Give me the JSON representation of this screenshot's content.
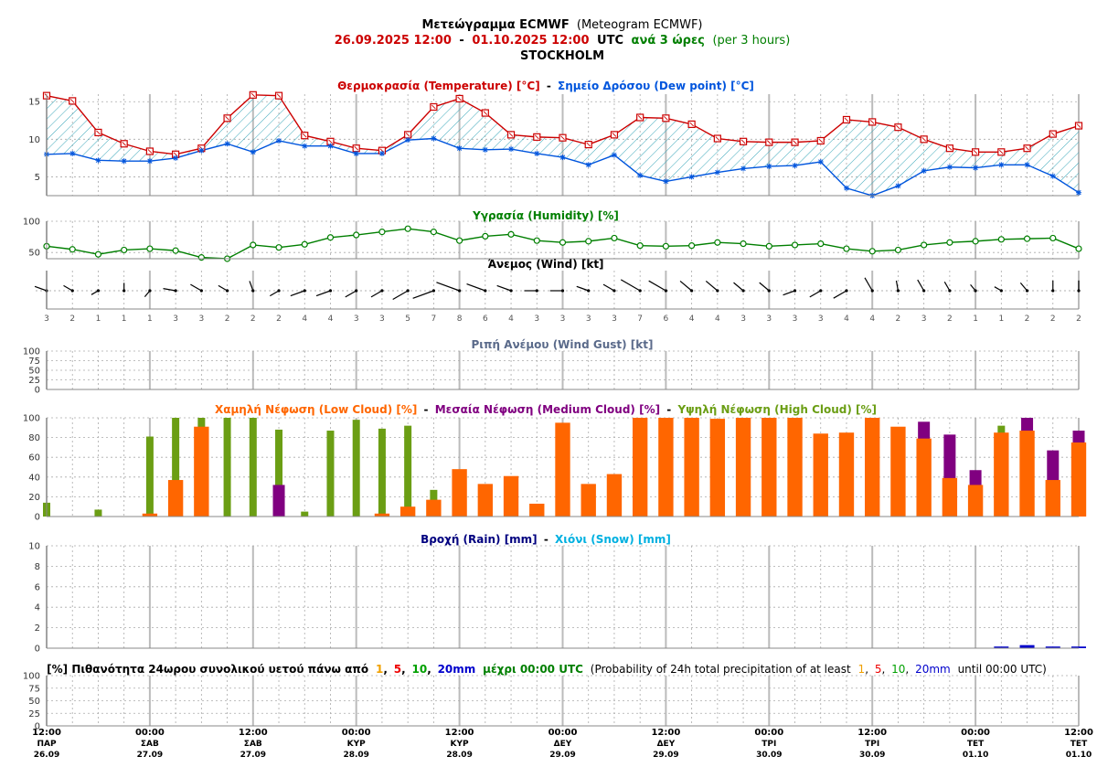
{
  "header": {
    "line1_bold": "Μετεώγραμμα ECMWF",
    "line1_normal": "(Meteogram ECMWF)",
    "date_from": "26.09.2025 12:00",
    "date_sep": "-",
    "date_to": "01.10.2025 12:00",
    "utc": "UTC",
    "step_gr": "ανά 3 ώρες",
    "step_en": "(per 3 hours)",
    "location": "STOCKHOLM"
  },
  "titles": {
    "temp": "Θερμοκρασία (Temperature) [°C]",
    "sep": "-",
    "dew": "Σημείο Δρόσου (Dew point) [°C]",
    "humidity": "Υγρασία (Humidity) [%]",
    "wind": "Άνεμος (Wind) [kt]",
    "gust": "Ριπή Ανέμου (Wind Gust) [kt]",
    "low_cloud": "Χαμηλή Νέφωση (Low Cloud) [%]",
    "medium_cloud": "Μεσαία Νέφωση (Medium Cloud) [%]",
    "high_cloud": "Υψηλή Νέφωση (High Cloud) [%]",
    "rain": "Βροχή (Rain) [mm]",
    "snow": "Χιόνι (Snow) [mm]",
    "prob_gr_a": "[%] Πιθανότητα 24ωρου συνολικού υετού πάνω από",
    "prob_gr_b": "μέχρι 00:00 UTC",
    "prob_en_a": "(Probability of 24h total precipitation of at least",
    "prob_en_b": "until 00:00 UTC)",
    "thresholds": [
      "1",
      "5",
      "10",
      "20mm"
    ]
  },
  "colors": {
    "red": "#cc0000",
    "green": "#007f00",
    "temp": "#cc0000",
    "dew": "#0055dd",
    "hatch": "#3aa7b9",
    "humidity": "#007f00",
    "gust": "#5a6a8a",
    "low": "#ff6600",
    "medium": "#800080",
    "high": "#6b9e14",
    "rain": "#00007f",
    "snow": "#00b0e0",
    "thr1": "#f0a000",
    "thr5": "#ee0000",
    "thr10": "#00a000",
    "thr20": "#0000cc"
  },
  "x_ticks": [
    {
      "time": "12:00",
      "day": "ΠΑΡ",
      "date": "26.09"
    },
    {
      "time": "00:00",
      "day": "ΣΑΒ",
      "date": "27.09"
    },
    {
      "time": "12:00",
      "day": "ΣΑΒ",
      "date": "27.09"
    },
    {
      "time": "00:00",
      "day": "ΚΥΡ",
      "date": "28.09"
    },
    {
      "time": "12:00",
      "day": "ΚΥΡ",
      "date": "28.09"
    },
    {
      "time": "00:00",
      "day": "ΔΕΥ",
      "date": "29.09"
    },
    {
      "time": "12:00",
      "day": "ΔΕΥ",
      "date": "29.09"
    },
    {
      "time": "00:00",
      "day": "ΤΡΙ",
      "date": "30.09"
    },
    {
      "time": "12:00",
      "day": "ΤΡΙ",
      "date": "30.09"
    },
    {
      "time": "00:00",
      "day": "ΤΕΤ",
      "date": "01.10"
    },
    {
      "time": "12:00",
      "day": "ΤΕΤ",
      "date": "01.10"
    }
  ],
  "y_ticks": {
    "temp": [
      "15",
      "10",
      "5"
    ],
    "humidity": [
      "100",
      "50"
    ],
    "gust": [
      "100",
      "75",
      "50",
      "25",
      "0"
    ],
    "cloud": [
      "100",
      "80",
      "60",
      "40",
      "20",
      "0"
    ],
    "rain": [
      "10",
      "8",
      "6",
      "4",
      "2",
      "0"
    ],
    "prob": [
      "100",
      "75",
      "50",
      "25",
      "0"
    ]
  },
  "chart_data": {
    "type": "line",
    "step_hours": 3,
    "n_steps": 41,
    "temperature": [
      15.8,
      15.1,
      10.9,
      9.4,
      8.4,
      8.0,
      8.8,
      12.8,
      15.9,
      15.8,
      10.5,
      9.7,
      8.8,
      8.5,
      10.6,
      14.3,
      15.4,
      13.5,
      10.6,
      10.3,
      10.2,
      9.3,
      10.6,
      12.9,
      12.8,
      12.0,
      10.1,
      9.7,
      9.6,
      9.6,
      9.8,
      12.6,
      12.3,
      11.6,
      10.0,
      8.8,
      8.3,
      8.3,
      8.8,
      10.7,
      11.8
    ],
    "dew_point": [
      8.0,
      8.1,
      7.2,
      7.1,
      7.1,
      7.5,
      8.5,
      9.4,
      8.3,
      9.8,
      9.1,
      9.1,
      8.1,
      8.1,
      9.9,
      10.1,
      8.8,
      8.6,
      8.7,
      8.1,
      7.6,
      6.6,
      7.9,
      5.2,
      4.4,
      5.0,
      5.6,
      6.1,
      6.4,
      6.5,
      7.0,
      3.5,
      2.5,
      3.8,
      5.8,
      6.3,
      6.2,
      6.6,
      6.6,
      5.1,
      2.9
    ],
    "humidity": [
      60,
      55,
      47,
      54,
      56,
      53,
      42,
      40,
      62,
      58,
      63,
      74,
      78,
      83,
      88,
      83,
      69,
      76,
      79,
      69,
      66,
      68,
      73,
      61,
      60,
      61,
      66,
      64,
      60,
      62,
      64,
      56,
      52,
      54,
      62,
      66,
      68,
      71,
      72,
      73,
      56
    ],
    "wind_speed_kt": [
      3,
      2,
      1,
      1,
      1,
      3,
      3,
      2,
      2,
      2,
      4,
      4,
      3,
      3,
      5,
      7,
      8,
      6,
      4,
      3,
      3,
      3,
      3,
      7,
      6,
      4,
      4,
      3,
      3,
      3,
      3,
      4,
      4,
      2,
      3,
      2,
      1,
      1,
      2,
      2,
      2
    ],
    "wind_from_deg": [
      290,
      300,
      240,
      0,
      220,
      280,
      300,
      300,
      340,
      240,
      250,
      250,
      240,
      240,
      240,
      250,
      290,
      290,
      290,
      270,
      270,
      290,
      300,
      300,
      300,
      310,
      310,
      310,
      310,
      250,
      240,
      240,
      330,
      350,
      330,
      330,
      320,
      300,
      320,
      0,
      0
    ],
    "wind_gust_kt": [],
    "low_cloud": [
      0,
      0,
      0,
      0,
      3,
      37,
      91,
      0,
      0,
      0,
      0,
      0,
      0,
      3,
      10,
      17,
      48,
      33,
      41,
      13,
      95,
      33,
      43,
      100,
      100,
      100,
      99,
      100,
      100,
      100,
      84,
      85,
      100,
      91,
      79,
      39,
      32,
      85,
      87,
      37,
      75
    ],
    "medium_cloud": [
      0,
      0,
      0,
      0,
      0,
      0,
      0,
      0,
      0,
      32,
      0,
      0,
      0,
      0,
      0,
      0,
      0,
      0,
      0,
      0,
      0,
      0,
      0,
      0,
      0,
      0,
      0,
      0,
      0,
      0,
      0,
      0,
      0,
      0,
      96,
      83,
      47,
      0,
      100,
      67,
      87
    ],
    "high_cloud": [
      14,
      0,
      7,
      0,
      81,
      100,
      100,
      100,
      100,
      88,
      5,
      87,
      98,
      89,
      92,
      27,
      0,
      0,
      0,
      0,
      0,
      0,
      0,
      0,
      0,
      0,
      0,
      0,
      0,
      0,
      0,
      0,
      0,
      0,
      0,
      0,
      0,
      92,
      0,
      0,
      0
    ],
    "rain_mm": [
      0,
      0,
      0,
      0,
      0,
      0,
      0,
      0,
      0,
      0,
      0,
      0,
      0,
      0,
      0,
      0,
      0,
      0,
      0,
      0,
      0,
      0,
      0,
      0,
      0,
      0,
      0,
      0,
      0,
      0,
      0,
      0,
      0,
      0,
      0,
      0,
      0,
      0.05,
      0.3,
      0.1,
      0.1
    ],
    "snow_mm": [],
    "precip_probability": [],
    "temp_ylim": [
      2.5,
      16
    ],
    "humidity_ylim": [
      40,
      100
    ],
    "gust_ylim": [
      0,
      100
    ],
    "cloud_ylim": [
      0,
      100
    ],
    "rain_ylim": [
      0,
      10
    ],
    "prob_ylim": [
      0,
      100
    ],
    "grid": true
  }
}
